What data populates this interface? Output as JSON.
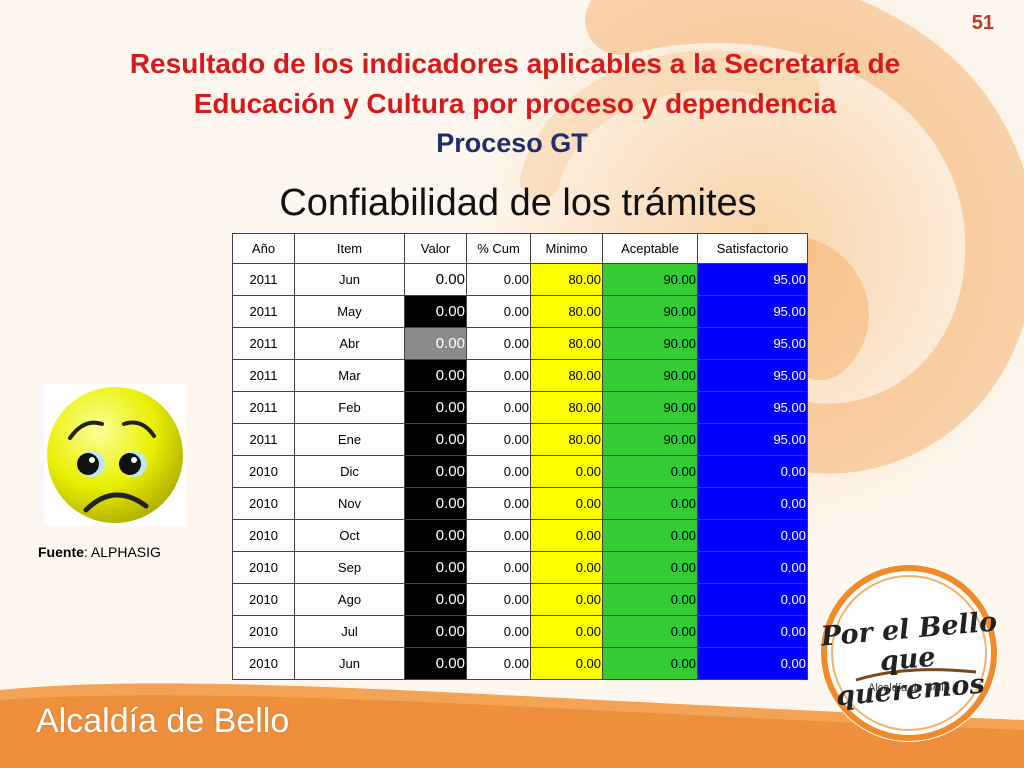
{
  "slide_number": "51",
  "title": "Resultado de los indicadores aplicables a la Secretaría de Educación y Cultura por proceso y dependencia",
  "subtitle": "Proceso GT",
  "chart_title": "Confiabilidad de los trámites",
  "table": {
    "headers": [
      "Año",
      "Item",
      "Valor",
      "% Cum",
      "Minimo",
      "Aceptable",
      "Satisfactorio"
    ],
    "rows": [
      {
        "anio": "2011",
        "item": "Jun",
        "valor": "0.00",
        "valor_style": "white",
        "cum": "0.00",
        "minimo": "80.00",
        "aceptable": "90.00",
        "satisfactorio": "95.00"
      },
      {
        "anio": "2011",
        "item": "May",
        "valor": "0.00",
        "valor_style": "black",
        "cum": "0.00",
        "minimo": "80.00",
        "aceptable": "90.00",
        "satisfactorio": "95.00"
      },
      {
        "anio": "2011",
        "item": "Abr",
        "valor": "0.00",
        "valor_style": "grey",
        "cum": "0.00",
        "minimo": "80.00",
        "aceptable": "90.00",
        "satisfactorio": "95.00"
      },
      {
        "anio": "2011",
        "item": "Mar",
        "valor": "0.00",
        "valor_style": "black",
        "cum": "0.00",
        "minimo": "80.00",
        "aceptable": "90.00",
        "satisfactorio": "95.00"
      },
      {
        "anio": "2011",
        "item": "Feb",
        "valor": "0.00",
        "valor_style": "black",
        "cum": "0.00",
        "minimo": "80.00",
        "aceptable": "90.00",
        "satisfactorio": "95.00"
      },
      {
        "anio": "2011",
        "item": "Ene",
        "valor": "0.00",
        "valor_style": "black",
        "cum": "0.00",
        "minimo": "80.00",
        "aceptable": "90.00",
        "satisfactorio": "95.00"
      },
      {
        "anio": "2010",
        "item": "Dic",
        "valor": "0.00",
        "valor_style": "black",
        "cum": "0.00",
        "minimo": "0.00",
        "aceptable": "0.00",
        "satisfactorio": "0.00"
      },
      {
        "anio": "2010",
        "item": "Nov",
        "valor": "0.00",
        "valor_style": "black",
        "cum": "0.00",
        "minimo": "0.00",
        "aceptable": "0.00",
        "satisfactorio": "0.00"
      },
      {
        "anio": "2010",
        "item": "Oct",
        "valor": "0.00",
        "valor_style": "black",
        "cum": "0.00",
        "minimo": "0.00",
        "aceptable": "0.00",
        "satisfactorio": "0.00"
      },
      {
        "anio": "2010",
        "item": "Sep",
        "valor": "0.00",
        "valor_style": "black",
        "cum": "0.00",
        "minimo": "0.00",
        "aceptable": "0.00",
        "satisfactorio": "0.00"
      },
      {
        "anio": "2010",
        "item": "Ago",
        "valor": "0.00",
        "valor_style": "black",
        "cum": "0.00",
        "minimo": "0.00",
        "aceptable": "0.00",
        "satisfactorio": "0.00"
      },
      {
        "anio": "2010",
        "item": "Jul",
        "valor": "0.00",
        "valor_style": "black",
        "cum": "0.00",
        "minimo": "0.00",
        "aceptable": "0.00",
        "satisfactorio": "0.00"
      },
      {
        "anio": "2010",
        "item": "Jun",
        "valor": "0.00",
        "valor_style": "black",
        "cum": "0.00",
        "minimo": "0.00",
        "aceptable": "0.00",
        "satisfactorio": "0.00"
      }
    ]
  },
  "indicator_icon": "sad-face-icon",
  "source": {
    "label": "Fuente",
    "value": ": ALPHASIG"
  },
  "footer_brand": "Alcaldía de Bello",
  "logo": {
    "line1": "Por el Bello",
    "line2": "que queremos",
    "sub": "Alcaldía de Bello"
  },
  "colors": {
    "title": "#d7191c",
    "subtitle": "#1f2f6b",
    "minimo": "#ffff00",
    "aceptable": "#33cc33",
    "satisfactorio": "#0000ff",
    "valor_black": "#000000",
    "valor_grey": "#8a8a8a",
    "brand_orange": "#f0a050"
  }
}
